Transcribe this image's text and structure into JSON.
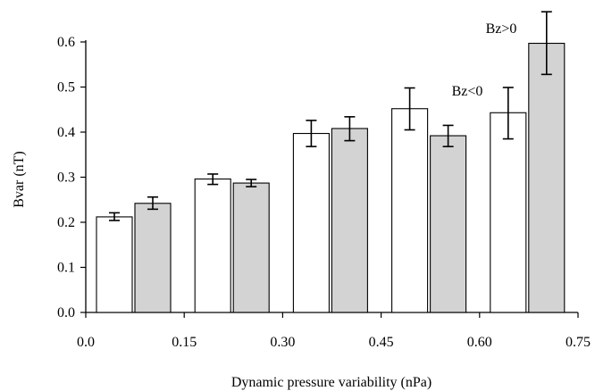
{
  "chart_data": {
    "type": "bar",
    "title": "",
    "xlabel": "Dynamic pressure variability (nPa)",
    "ylabel": "Bvar (nT)",
    "ylim": [
      0,
      0.6
    ],
    "yticks": [
      "0.0",
      "0.1",
      "0.2",
      "0.3",
      "0.4",
      "0.5",
      "0.6"
    ],
    "xticks": [
      "0.0",
      "0.15",
      "0.30",
      "0.45",
      "0.60",
      "0.75"
    ],
    "grid": false,
    "series": [
      {
        "name": "Bz<0",
        "color": "#ffffff",
        "values": [
          0.212,
          0.296,
          0.397,
          0.452,
          0.443
        ],
        "err_low": [
          0.204,
          0.284,
          0.368,
          0.405,
          0.385
        ],
        "err_high": [
          0.221,
          0.307,
          0.426,
          0.498,
          0.499
        ]
      },
      {
        "name": "Bz>0",
        "color": "#d3d3d3",
        "values": [
          0.242,
          0.287,
          0.408,
          0.392,
          0.597
        ],
        "err_low": [
          0.229,
          0.279,
          0.381,
          0.368,
          0.528
        ],
        "err_high": [
          0.256,
          0.295,
          0.434,
          0.415,
          0.667
        ]
      }
    ]
  }
}
